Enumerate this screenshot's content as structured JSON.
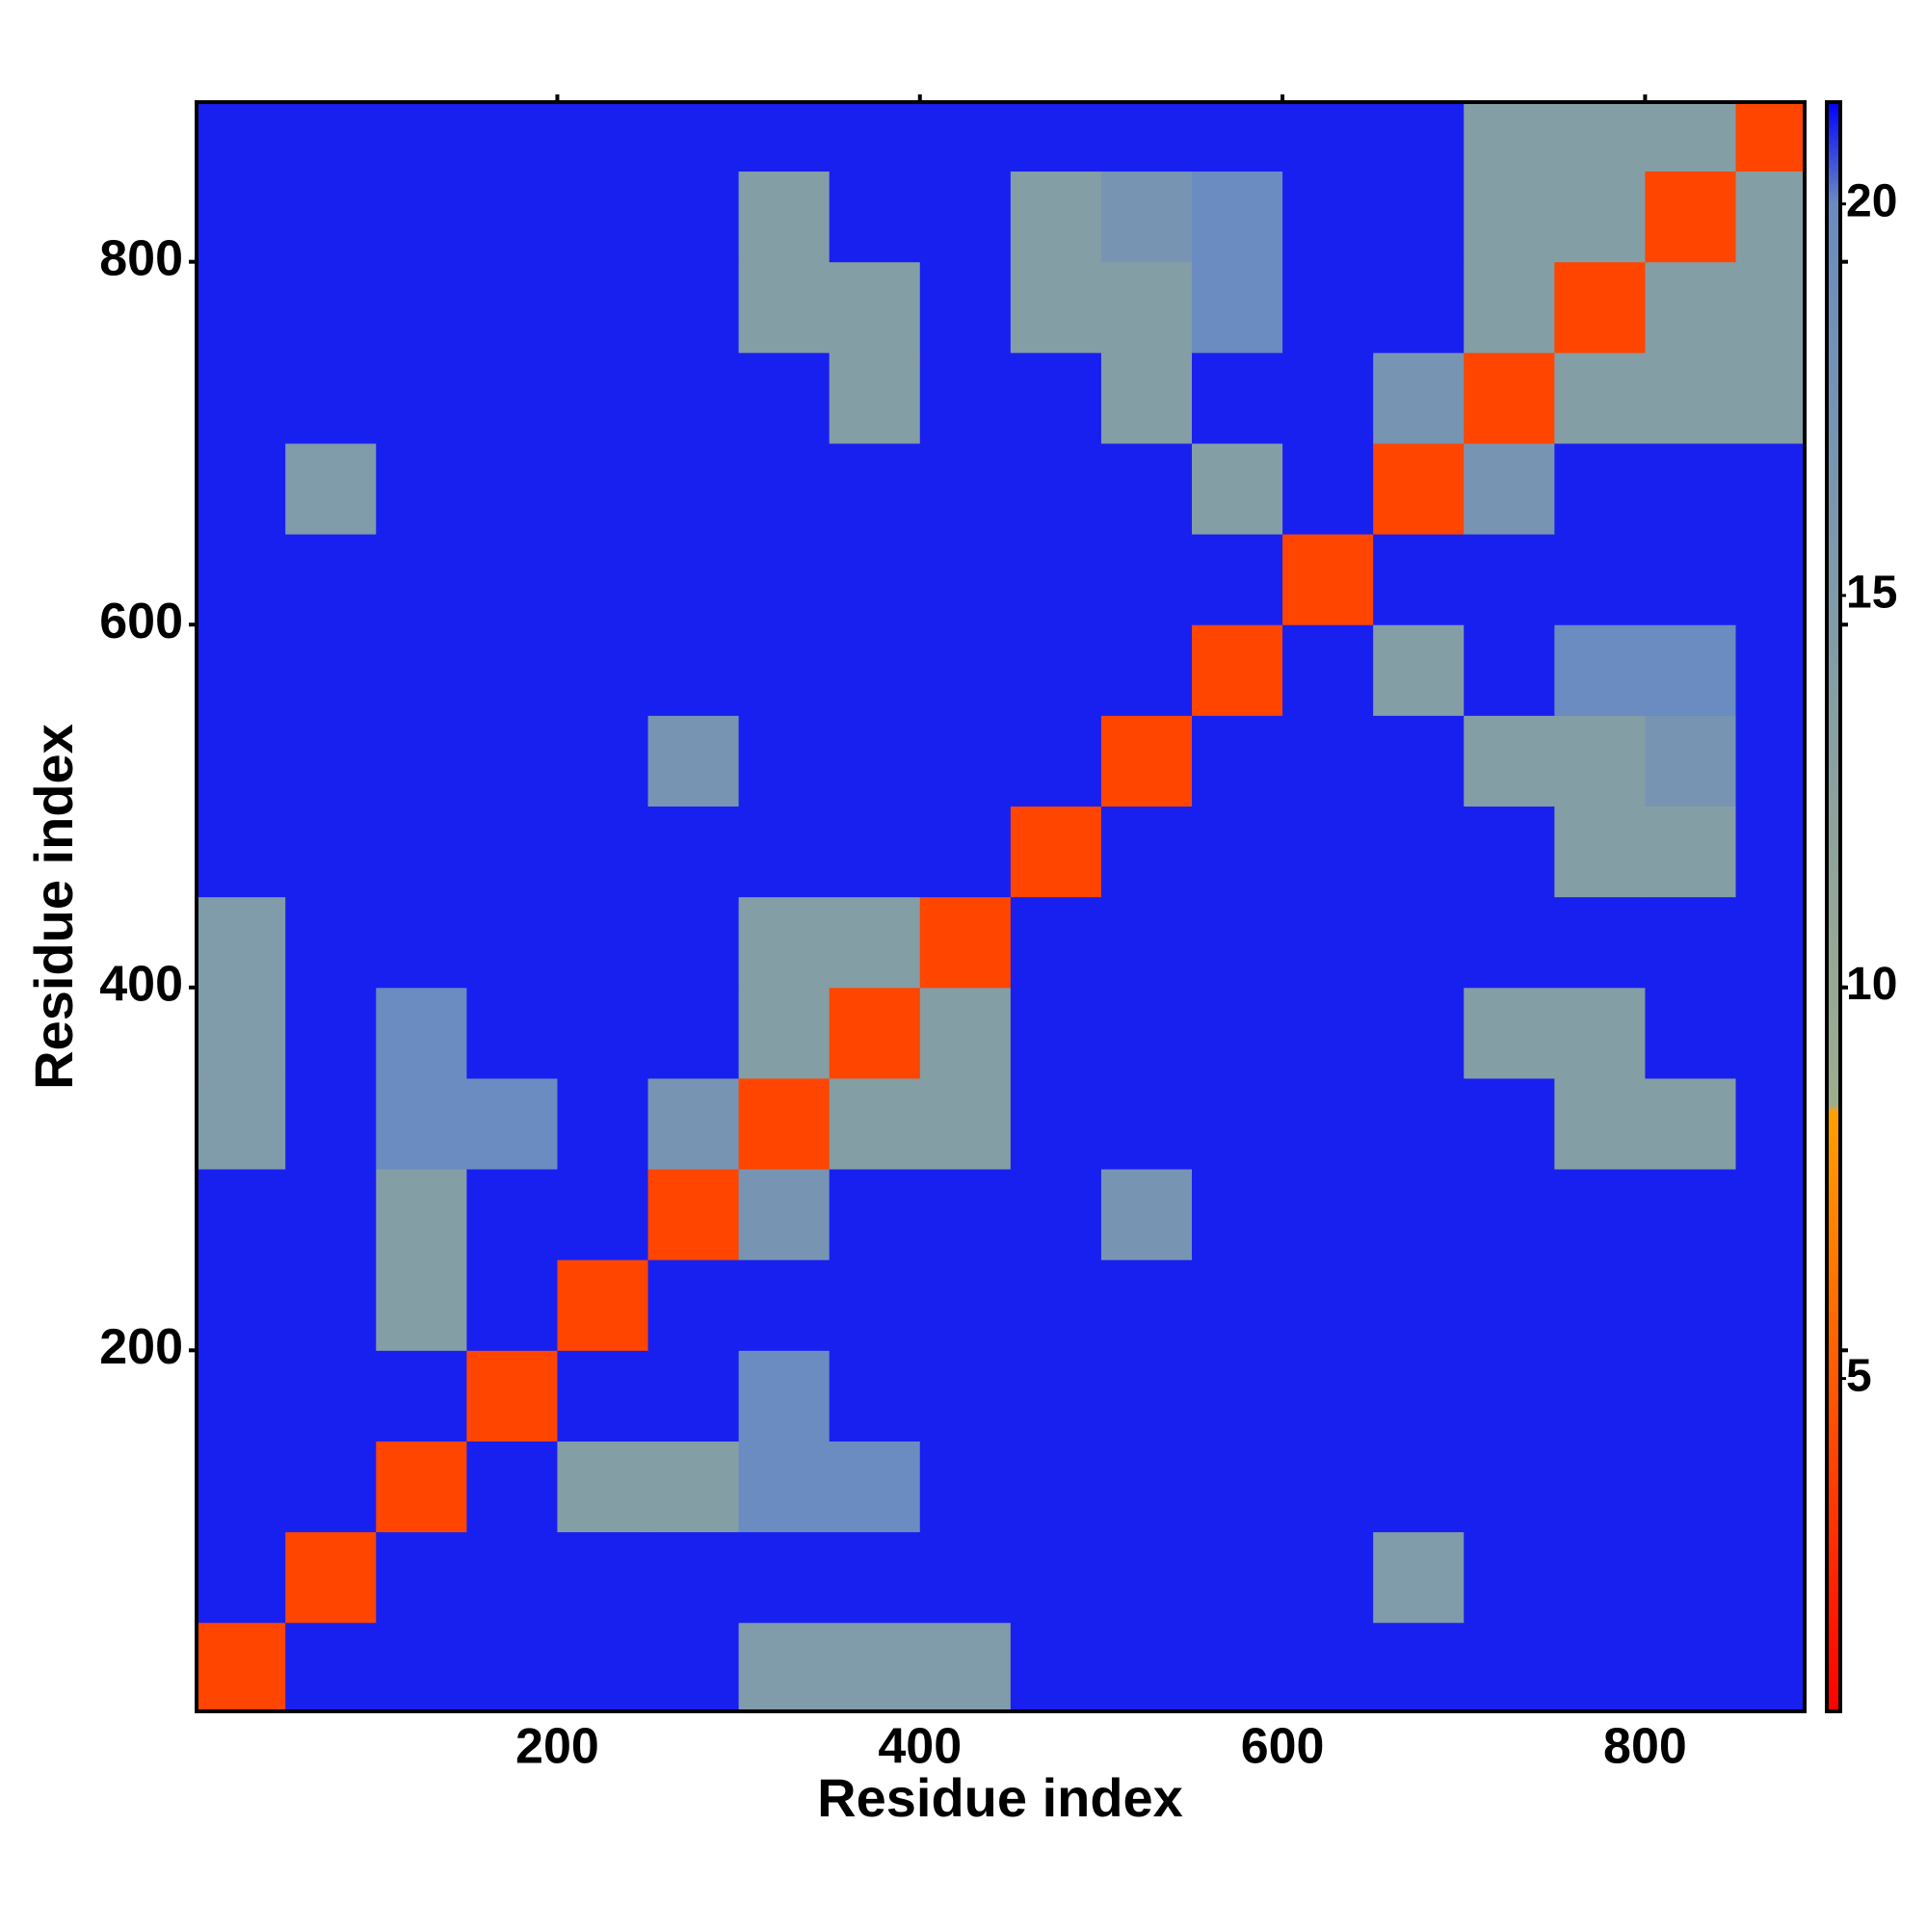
{
  "chart_data": {
    "type": "heatmap",
    "x_label": "Residue index",
    "y_label": "Residue index",
    "xlim": [
      1,
      888
    ],
    "ylim": [
      1,
      888
    ],
    "xticks": [
      200,
      400,
      600,
      800
    ],
    "yticks": [
      200,
      400,
      600,
      800
    ],
    "bins": [
      1,
      50,
      100,
      150,
      200,
      250,
      300,
      350,
      400,
      450,
      500,
      550,
      600,
      650,
      700,
      750,
      800,
      850,
      888
    ],
    "z": [
      [
        4,
        21,
        21,
        21,
        21,
        21,
        15,
        15,
        15,
        21,
        21,
        21,
        21,
        21,
        21,
        21,
        21,
        21
      ],
      [
        21,
        4,
        21,
        21,
        21,
        21,
        21,
        21,
        21,
        21,
        21,
        21,
        21,
        15,
        21,
        21,
        21,
        21
      ],
      [
        21,
        21,
        4,
        21,
        14,
        14,
        20,
        20,
        21,
        21,
        21,
        21,
        21,
        21,
        21,
        21,
        21,
        21
      ],
      [
        21,
        21,
        21,
        4,
        21,
        21,
        20,
        21,
        21,
        21,
        21,
        21,
        21,
        21,
        21,
        21,
        21,
        21
      ],
      [
        21,
        21,
        14,
        21,
        4,
        21,
        21,
        21,
        21,
        21,
        21,
        21,
        21,
        21,
        21,
        21,
        21,
        21
      ],
      [
        21,
        21,
        14,
        21,
        21,
        4,
        17,
        21,
        21,
        21,
        17,
        21,
        21,
        21,
        21,
        21,
        21,
        21
      ],
      [
        15,
        21,
        20,
        20,
        21,
        17,
        4,
        14,
        14,
        21,
        21,
        21,
        21,
        21,
        21,
        14,
        14,
        21
      ],
      [
        15,
        21,
        20,
        21,
        21,
        21,
        14,
        4,
        14,
        21,
        21,
        21,
        21,
        21,
        14,
        14,
        21,
        21
      ],
      [
        15,
        21,
        21,
        21,
        21,
        21,
        14,
        14,
        4,
        21,
        21,
        21,
        21,
        21,
        21,
        21,
        21,
        21
      ],
      [
        21,
        21,
        21,
        21,
        21,
        21,
        21,
        21,
        21,
        4,
        21,
        21,
        21,
        21,
        21,
        14,
        14,
        21
      ],
      [
        21,
        21,
        21,
        21,
        21,
        17,
        21,
        21,
        21,
        21,
        4,
        21,
        21,
        21,
        14,
        14,
        17,
        21
      ],
      [
        21,
        21,
        21,
        21,
        21,
        21,
        21,
        21,
        21,
        21,
        21,
        4,
        21,
        14,
        21,
        20,
        20,
        21
      ],
      [
        21,
        21,
        21,
        21,
        21,
        21,
        21,
        21,
        21,
        21,
        21,
        21,
        4,
        21,
        21,
        21,
        21,
        21
      ],
      [
        21,
        15,
        21,
        21,
        21,
        21,
        21,
        21,
        21,
        21,
        21,
        14,
        21,
        4,
        17,
        21,
        21,
        21
      ],
      [
        21,
        21,
        21,
        21,
        21,
        21,
        21,
        14,
        21,
        21,
        14,
        21,
        21,
        17,
        4,
        14,
        14,
        14
      ],
      [
        21,
        21,
        21,
        21,
        21,
        21,
        14,
        14,
        21,
        14,
        14,
        20,
        21,
        21,
        14,
        4,
        14,
        14
      ],
      [
        21,
        21,
        21,
        21,
        21,
        21,
        14,
        21,
        21,
        14,
        17,
        20,
        21,
        21,
        14,
        14,
        4,
        14
      ],
      [
        21,
        21,
        21,
        21,
        21,
        21,
        21,
        21,
        21,
        21,
        21,
        21,
        21,
        21,
        14,
        14,
        14,
        4
      ]
    ],
    "colorbar": {
      "lim": [
        0.75,
        21.3
      ],
      "ticks": [
        5,
        10,
        15,
        20
      ],
      "stops": [
        {
          "value": 0.75,
          "color": "#ff0000"
        },
        {
          "value": 5,
          "color": "#ff5a00"
        },
        {
          "value": 8.4,
          "color": "#ffa000"
        },
        {
          "value": 8.5,
          "color": "#9cae8c"
        },
        {
          "value": 20,
          "color": "#6a8cc0"
        },
        {
          "value": 21.3,
          "color": "#0000ff"
        }
      ]
    }
  }
}
